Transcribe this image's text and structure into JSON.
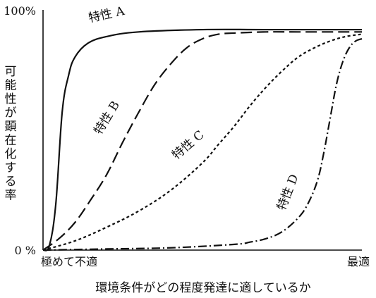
{
  "chart_data": {
    "type": "line",
    "title": "",
    "xlabel": "環境条件がどの程度発達に適しているか",
    "ylabel": "可能性が顕在化する率",
    "y_ticks": [
      "100%",
      "0 %"
    ],
    "x_ticks": [
      "極めて不適",
      "最適"
    ],
    "xlim": [
      0,
      1
    ],
    "ylim": [
      0,
      100
    ],
    "series": [
      {
        "name": "特性A",
        "label_text": "特性 A",
        "dash": "solid",
        "x": [
          0.0,
          0.02,
          0.04,
          0.06,
          0.08,
          0.1,
          0.14,
          0.2,
          0.3,
          0.5,
          0.7,
          1.0
        ],
        "y": [
          0,
          2,
          20,
          60,
          76,
          84,
          90,
          93,
          95,
          96,
          96,
          96
        ]
      },
      {
        "name": "特性B",
        "label_text": "特性 B",
        "dash": "long-dash",
        "x": [
          0.0,
          0.05,
          0.1,
          0.15,
          0.2,
          0.25,
          0.3,
          0.35,
          0.4,
          0.45,
          0.5,
          0.55,
          0.6,
          0.7,
          0.8,
          1.0
        ],
        "y": [
          0,
          5,
          12,
          22,
          33,
          47,
          60,
          72,
          81,
          88,
          92,
          94,
          94.5,
          95,
          95,
          95
        ]
      },
      {
        "name": "特性C",
        "label_text": "特性 C",
        "dash": "short-dash",
        "x": [
          0.0,
          0.1,
          0.2,
          0.3,
          0.4,
          0.5,
          0.55,
          0.6,
          0.65,
          0.7,
          0.75,
          0.8,
          0.85,
          0.9,
          0.95,
          1.0
        ],
        "y": [
          0,
          4,
          10,
          17,
          26,
          38,
          46,
          54,
          63,
          71,
          78,
          84,
          88,
          91,
          93,
          94
        ]
      },
      {
        "name": "特性D",
        "label_text": "特性 D",
        "dash": "dash-dot",
        "x": [
          0.0,
          0.2,
          0.4,
          0.6,
          0.65,
          0.7,
          0.75,
          0.8,
          0.83,
          0.86,
          0.88,
          0.9,
          0.92,
          0.94,
          0.96,
          0.98,
          1.0
        ],
        "y": [
          0,
          0.5,
          1,
          2.5,
          3.5,
          5,
          8,
          14,
          20,
          30,
          42,
          57,
          72,
          82,
          88,
          91,
          92
        ]
      }
    ],
    "legend": "none",
    "grid": false
  }
}
